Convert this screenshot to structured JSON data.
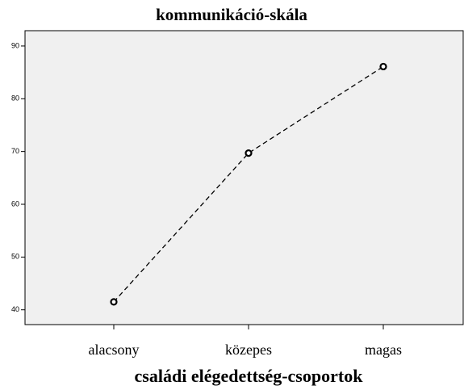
{
  "chart_data": {
    "type": "line",
    "title": "kommunikáció-skála",
    "x_label": "családi elégedettség-csoportok",
    "categories": [
      "alacsony",
      "közepes",
      "magas"
    ],
    "values": [
      41.5,
      69.7,
      86.1
    ],
    "color": "#000000",
    "ylim": [
      37.2,
      92.9
    ],
    "yticks": [
      40,
      50,
      60,
      70,
      80,
      90
    ],
    "grid": false
  }
}
